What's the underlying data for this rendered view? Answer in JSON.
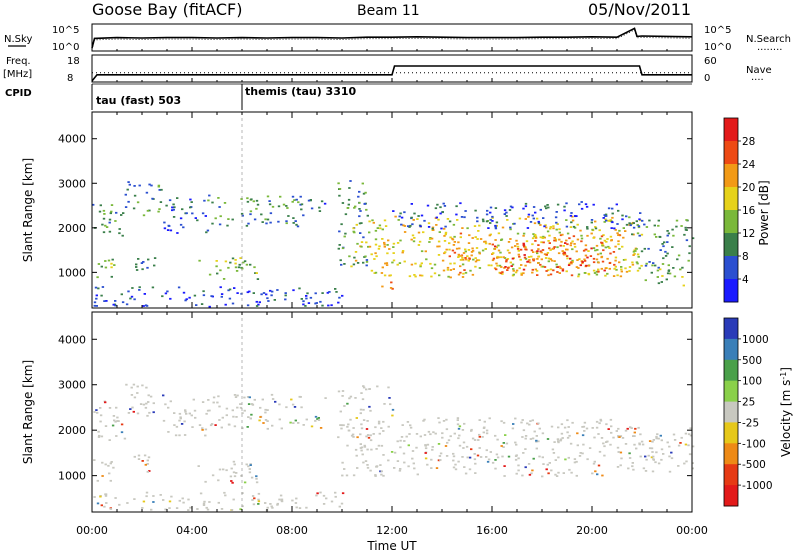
{
  "header": {
    "station": "Goose Bay (fitACF)",
    "beam": "Beam 11",
    "date": "05/Nov/2011"
  },
  "noise_panel": {
    "left_label": "N.Sky",
    "left_ticks": [
      "10^5",
      "10^0"
    ],
    "right_label": "N.Search",
    "right_legend_line": "........"
  },
  "freq_panel": {
    "left_label_1": "Freq.",
    "left_label_2": "[MHz]",
    "left_ticks": [
      "18",
      "8"
    ],
    "right_ticks": [
      "60",
      "0"
    ],
    "right_label": "Nave",
    "right_legend_line": "...."
  },
  "cpid": {
    "label": "CPID",
    "segments": [
      {
        "start_h": 0,
        "text": "tau (fast) 503"
      },
      {
        "start_h": 6,
        "text": "themis (tau) 3310"
      }
    ]
  },
  "chart_data": [
    {
      "type": "line",
      "title": "N.Sky / N.Search",
      "x_unit": "hours UT",
      "series": [
        {
          "name": "N.Sky",
          "x": [
            0,
            0.1,
            1,
            2,
            3,
            4,
            5,
            6,
            7,
            8,
            9,
            10,
            11,
            12,
            13,
            14,
            15,
            16,
            17,
            18,
            19,
            20,
            21,
            21.7,
            21.8,
            22,
            23,
            24
          ],
          "y_log10": [
            0,
            2.4,
            2.6,
            2.5,
            2.6,
            2.6,
            2.5,
            2.6,
            2.5,
            2.6,
            2.6,
            2.5,
            2.7,
            2.7,
            2.8,
            2.7,
            2.6,
            2.6,
            2.6,
            2.7,
            2.7,
            2.8,
            2.7,
            4.9,
            2.9,
            3.0,
            2.9,
            2.8
          ]
        }
      ]
    },
    {
      "type": "line",
      "title": "Freq / Nave",
      "series": [
        {
          "name": "Freq",
          "unit": "MHz",
          "x": [
            0,
            0.2,
            12,
            12.1,
            21.9,
            22.0,
            24
          ],
          "y": [
            8,
            10.5,
            10.5,
            14,
            14,
            10.5,
            10.5
          ]
        },
        {
          "name": "Nave",
          "x": [
            0,
            24
          ],
          "y": [
            20,
            20
          ]
        }
      ],
      "ylim_left": [
        8,
        18
      ],
      "ylim_right": [
        0,
        60
      ]
    },
    {
      "type": "heatmap",
      "title": "Power [dB]",
      "ylabel": "Slant Range [km]",
      "yticks": [
        1000,
        2000,
        3000,
        4000
      ],
      "ylim": [
        200,
        4600
      ],
      "colorbar": {
        "label": "Power [dB]",
        "ticks": [
          "4",
          "8",
          "12",
          "16",
          "20",
          "24",
          "28"
        ],
        "colors": [
          "#1a1aff",
          "#2b4fd0",
          "#3a7f4a",
          "#7ab83a",
          "#e6d21a",
          "#f29a16",
          "#ee4a14",
          "#e31a1a"
        ]
      },
      "bands": [
        {
          "t0": 0.0,
          "t1": 1.3,
          "r0": 1800,
          "r1": 2600,
          "level": 2
        },
        {
          "t0": 1.3,
          "t1": 2.8,
          "r0": 2300,
          "r1": 3050,
          "level": 2
        },
        {
          "t0": 2.8,
          "t1": 4.6,
          "r0": 1900,
          "r1": 2700,
          "level": 1
        },
        {
          "t0": 4.6,
          "t1": 8.5,
          "r0": 2050,
          "r1": 2750,
          "level": 2
        },
        {
          "t0": 8.5,
          "t1": 9.3,
          "r0": 2250,
          "r1": 2700,
          "level": 1
        },
        {
          "t0": 0.0,
          "t1": 0.9,
          "r0": 900,
          "r1": 1400,
          "level": 3
        },
        {
          "t0": 1.6,
          "t1": 2.6,
          "r0": 1050,
          "r1": 1500,
          "level": 2
        },
        {
          "t0": 4.2,
          "t1": 6.6,
          "r0": 850,
          "r1": 1350,
          "level": 3
        },
        {
          "t0": 0.0,
          "t1": 10.0,
          "r0": 250,
          "r1": 700,
          "level": 1
        },
        {
          "t0": 9.8,
          "t1": 11.0,
          "r0": 1100,
          "r1": 3100,
          "level": 2
        },
        {
          "t0": 10.3,
          "t1": 12.0,
          "r0": 1000,
          "r1": 2200,
          "level": 4
        },
        {
          "t0": 11.3,
          "t1": 12.0,
          "r0": 600,
          "r1": 1100,
          "level": 5
        },
        {
          "t0": 12.0,
          "t1": 22.0,
          "r0": 900,
          "r1": 2300,
          "level": 4
        },
        {
          "t0": 14.0,
          "t1": 21.5,
          "r0": 950,
          "r1": 1900,
          "level": 5
        },
        {
          "t0": 16.0,
          "t1": 20.5,
          "r0": 1050,
          "r1": 1700,
          "level": 6
        },
        {
          "t0": 12.0,
          "t1": 22.0,
          "r0": 2000,
          "r1": 2600,
          "level": 1
        },
        {
          "t0": 21.5,
          "t1": 24.0,
          "r0": 1100,
          "r1": 2200,
          "level": 2
        },
        {
          "t0": 22.0,
          "t1": 23.8,
          "r0": 700,
          "r1": 1100,
          "level": 3
        }
      ]
    },
    {
      "type": "heatmap",
      "title": "Velocity [m s^-1]",
      "ylabel": "Slant Range [km]",
      "yticks": [
        1000,
        2000,
        3000,
        4000
      ],
      "ylim": [
        200,
        4600
      ],
      "colorbar": {
        "label": "Velocity [m s",
        "label_sup": "-1",
        "label_end": "]",
        "ticks": [
          "1000",
          "500",
          "100",
          "25",
          "-25",
          "-100",
          "-500",
          "-1000"
        ],
        "colors": [
          "#2a3bb8",
          "#3a7fb8",
          "#4aa04a",
          "#8ad04a",
          "#c8c8c0",
          "#e6c81a",
          "#ee8a16",
          "#e63a14",
          "#e31a1a"
        ]
      },
      "bands": [
        {
          "t0": 0.0,
          "t1": 1.3,
          "r0": 1800,
          "r1": 2700,
          "level": "gray"
        },
        {
          "t0": 1.3,
          "t1": 2.8,
          "r0": 2300,
          "r1": 3050,
          "level": "gray"
        },
        {
          "t0": 2.8,
          "t1": 4.6,
          "r0": 1900,
          "r1": 2700,
          "level": "gray"
        },
        {
          "t0": 4.6,
          "t1": 9.3,
          "r0": 2050,
          "r1": 2800,
          "level": "gray"
        },
        {
          "t0": 0.0,
          "t1": 0.9,
          "r0": 900,
          "r1": 1400,
          "level": "gray"
        },
        {
          "t0": 1.6,
          "t1": 2.6,
          "r0": 1050,
          "r1": 1500,
          "level": "gray"
        },
        {
          "t0": 4.2,
          "t1": 6.6,
          "r0": 850,
          "r1": 1350,
          "level": "gray"
        },
        {
          "t0": 0.0,
          "t1": 10.0,
          "r0": 250,
          "r1": 650,
          "level": "gray"
        },
        {
          "t0": 9.8,
          "t1": 12.0,
          "r0": 1000,
          "r1": 3000,
          "level": "gray"
        },
        {
          "t0": 12.0,
          "t1": 22.0,
          "r0": 1000,
          "r1": 2300,
          "level": "gray"
        },
        {
          "t0": 21.5,
          "t1": 24.0,
          "r0": 1100,
          "r1": 2100,
          "level": "gray"
        }
      ]
    }
  ],
  "x_axis": {
    "ticks": [
      "00:00",
      "04:00",
      "08:00",
      "12:00",
      "16:00",
      "20:00",
      "00:00"
    ],
    "label": "Time UT"
  }
}
